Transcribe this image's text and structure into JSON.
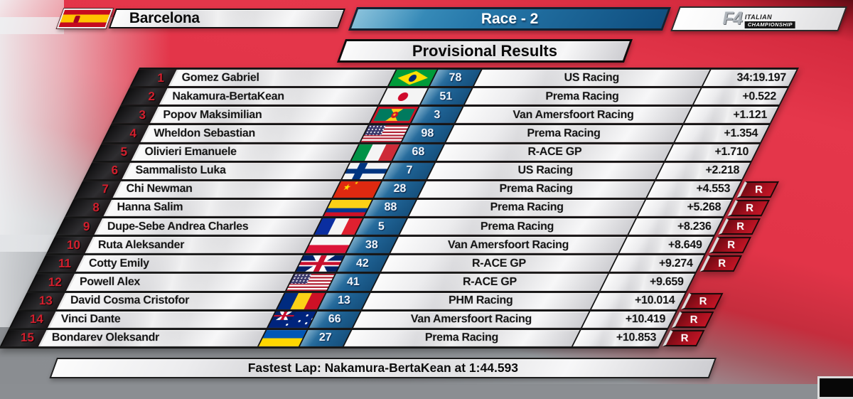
{
  "header": {
    "location": "Barcelona",
    "location_flag": "spain",
    "race_title": "Race - 2",
    "f4": "F4",
    "f4_line1": "ITALIAN",
    "f4_line2": "CHAMPIONSHIP",
    "subtitle": "Provisional Results"
  },
  "table": {
    "rows": [
      {
        "pos": "1",
        "driver": "Gomez Gabriel",
        "flag": "brazil",
        "flag_class": "flag flag-brazil",
        "number": "78",
        "team": "US Racing",
        "time": "34:19.197",
        "badge": "",
        "badge_class": "rbadge"
      },
      {
        "pos": "2",
        "driver": "Nakamura-BertaKean",
        "flag": "japan",
        "flag_class": "flag flag-japan",
        "number": "51",
        "team": "Prema Racing",
        "time": "+0.522",
        "badge": "",
        "badge_class": "rbadge"
      },
      {
        "pos": "3",
        "driver": "Popov Maksimilian",
        "flag": "grenada",
        "flag_class": "flag flag-grenada",
        "number": "3",
        "team": "Van Amersfoort Racing",
        "time": "+1.121",
        "badge": "",
        "badge_class": "rbadge"
      },
      {
        "pos": "4",
        "driver": "Wheldon Sebastian",
        "flag": "usa",
        "flag_class": "flag flag-usa",
        "number": "98",
        "team": "Prema Racing",
        "time": "+1.354",
        "badge": "",
        "badge_class": "rbadge"
      },
      {
        "pos": "5",
        "driver": "Olivieri Emanuele",
        "flag": "italy",
        "flag_class": "flag flag-italy",
        "number": "68",
        "team": "R-ACE GP",
        "time": "+1.710",
        "badge": "",
        "badge_class": "rbadge"
      },
      {
        "pos": "6",
        "driver": "Sammalisto Luka",
        "flag": "finland",
        "flag_class": "flag flag-finland",
        "number": "7",
        "team": "US Racing",
        "time": "+2.218",
        "badge": "",
        "badge_class": "rbadge"
      },
      {
        "pos": "7",
        "driver": "Chi Newman",
        "flag": "china",
        "flag_class": "flag flag-china",
        "number": "28",
        "team": "Prema Racing",
        "time": "+4.553",
        "badge": "R",
        "badge_class": "rbadge show"
      },
      {
        "pos": "8",
        "driver": "Hanna Salim",
        "flag": "colombia",
        "flag_class": "flag flag-colombia",
        "number": "88",
        "team": "Prema Racing",
        "time": "+5.268",
        "badge": "R",
        "badge_class": "rbadge show"
      },
      {
        "pos": "9",
        "driver": "Dupe-Sebe Andrea Charles",
        "flag": "france",
        "flag_class": "flag flag-france",
        "number": "5",
        "team": "Prema Racing",
        "time": "+8.236",
        "badge": "R",
        "badge_class": "rbadge show"
      },
      {
        "pos": "10",
        "driver": "Ruta Aleksander",
        "flag": "poland",
        "flag_class": "flag flag-poland",
        "number": "38",
        "team": "Van Amersfoort Racing",
        "time": "+8.649",
        "badge": "R",
        "badge_class": "rbadge show"
      },
      {
        "pos": "11",
        "driver": "Cotty Emily",
        "flag": "uk",
        "flag_class": "flag flag-uk",
        "number": "42",
        "team": "R-ACE GP",
        "time": "+9.274",
        "badge": "R",
        "badge_class": "rbadge show"
      },
      {
        "pos": "12",
        "driver": "Powell Alex",
        "flag": "usa",
        "flag_class": "flag flag-usa",
        "number": "41",
        "team": "R-ACE GP",
        "time": "+9.659",
        "badge": "",
        "badge_class": "rbadge"
      },
      {
        "pos": "13",
        "driver": "David Cosma Cristofor",
        "flag": "romania",
        "flag_class": "flag flag-romania",
        "number": "13",
        "team": "PHM Racing",
        "time": "+10.014",
        "badge": "R",
        "badge_class": "rbadge show"
      },
      {
        "pos": "14",
        "driver": "Vinci Dante",
        "flag": "australia",
        "flag_class": "flag flag-australia",
        "number": "66",
        "team": "Van Amersfoort Racing",
        "time": "+10.419",
        "badge": "R",
        "badge_class": "rbadge show"
      },
      {
        "pos": "15",
        "driver": "Bondarev Oleksandr",
        "flag": "ukraine",
        "flag_class": "flag flag-ukraine",
        "number": "27",
        "team": "Prema Racing",
        "time": "+10.853",
        "badge": "R",
        "badge_class": "rbadge show"
      }
    ]
  },
  "footer": {
    "fastest_lap": "Fastest Lap: Nakamura-BertaKean at 1:44.593"
  },
  "colors": {
    "race_bar_blue": "#1f6395",
    "number_cell_blue": "#1f6395",
    "position_number_red": "#d6202e",
    "rookie_badge_red": "#a5101e",
    "background_red": "#e23448",
    "silver_bar": "#d9d9dc"
  }
}
